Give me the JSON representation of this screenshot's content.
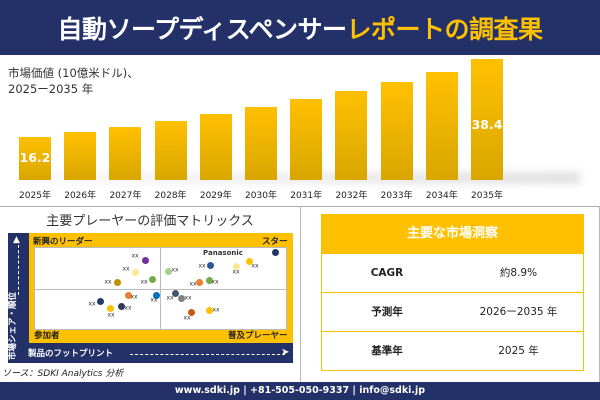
{
  "header": {
    "title_white": "自動ソープディスペンサー",
    "title_yellow": "レポートの調査果"
  },
  "chart_data": {
    "type": "bar",
    "title": "市場価値（10億米ドル）、\n2025ー2035年",
    "title_line1": "市場価値 (10億米ドル)、",
    "title_line2": "2025ー2035 年",
    "categories": [
      "2025年",
      "2026年",
      "2027年",
      "2028年",
      "2029年",
      "2030年",
      "2031年",
      "2032年",
      "2033年",
      "2034年",
      "2035年"
    ],
    "values": [
      16.2,
      17.6,
      19.2,
      20.9,
      22.8,
      24.8,
      27.0,
      29.4,
      32.0,
      34.9,
      38.4
    ],
    "data_labels": {
      "0": "16.2",
      "10": "38.4"
    },
    "colors": {
      "bar_top": "#FFC000",
      "bar_bottom": "#D9A600"
    }
  },
  "matrix": {
    "title": "主要プレーヤーの評価マトリックス",
    "quadrants": {
      "top_left": "新興のリーダー",
      "top_right": "スター",
      "bottom_left": "参加者",
      "bottom_right": "普及プレーヤー"
    },
    "x_axis": "製品のフットプリント",
    "y_axis": "市場シェア・順位",
    "players": [
      {
        "label": "xx",
        "color": "#7030A0"
      },
      {
        "label": "xx",
        "color": "#FFE699"
      },
      {
        "label": "xx",
        "color": "#BF9000"
      },
      {
        "label": "xx",
        "color": "#70AD47"
      },
      {
        "label": "xx",
        "color": "#A9D18E"
      },
      {
        "label": "xx",
        "color": "#2F5597"
      },
      {
        "label": "xx",
        "color": "#FFE699"
      },
      {
        "label": "xx",
        "color": "#FFC000"
      },
      {
        "label": "Panasonic",
        "color": "#203864"
      },
      {
        "label": "xx",
        "color": "#ED7D31"
      },
      {
        "label": "xx",
        "color": "#70AD47"
      },
      {
        "label": "xx",
        "color": "#ED7D31"
      },
      {
        "label": "xx",
        "color": "#0070C0"
      },
      {
        "label": "xx",
        "color": "#203864"
      },
      {
        "label": "xx",
        "color": "#FFC000"
      },
      {
        "label": "xx",
        "color": "#2E3A59"
      },
      {
        "label": "xx",
        "color": "#44546A"
      },
      {
        "label": "xx",
        "color": "#7F7F7F"
      },
      {
        "label": "xx",
        "color": "#C55A11"
      },
      {
        "label": "xx",
        "color": "#FFC000"
      }
    ]
  },
  "source": "ソース：SDKI Analytics 分析",
  "insights": {
    "title": "主要な市場洞察",
    "rows": [
      {
        "key": "CAGR",
        "value": "約8.9%"
      },
      {
        "key": "予測年",
        "value": "2026ー2035 年"
      },
      {
        "key": "基準年",
        "value": "2025 年"
      }
    ]
  },
  "footer": "www.sdki.jp | +81-505-050-9337 | info@sdki.jp"
}
